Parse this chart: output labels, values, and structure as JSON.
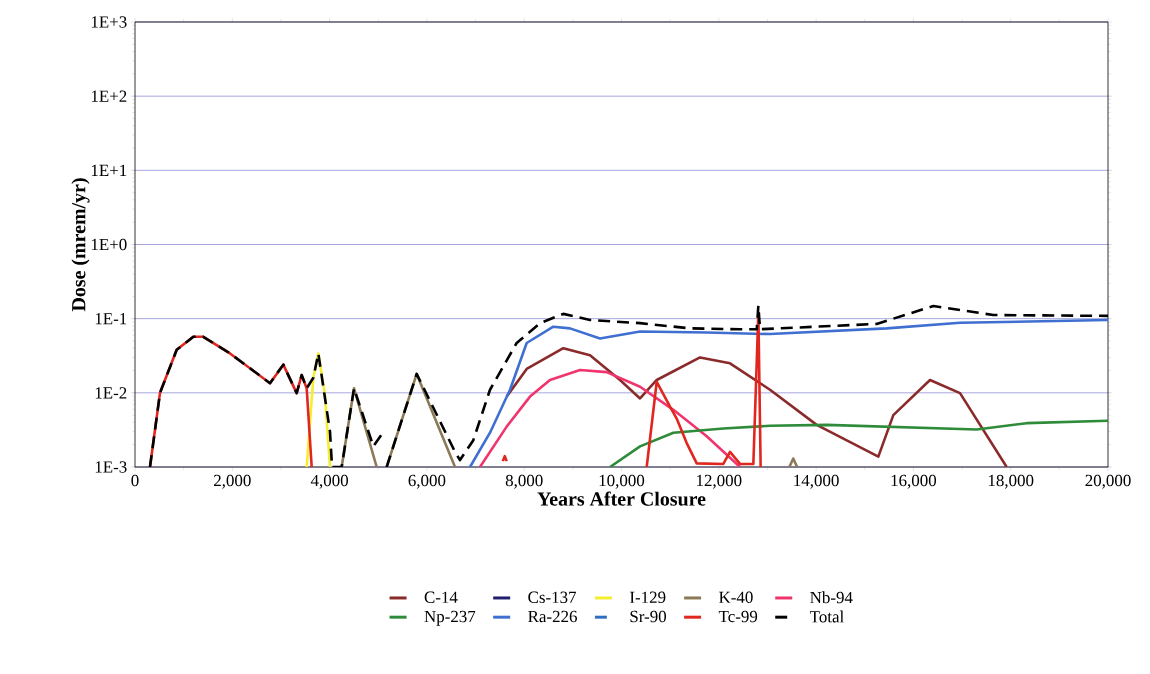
{
  "chart_data": {
    "type": "line",
    "xlabel": "Years After Closure",
    "ylabel": "Dose (mrem/yr)",
    "log": "y",
    "grid": "y",
    "legend": "bottom",
    "marker": "none",
    "xlim": [
      0,
      20000
    ],
    "ylim": [
      0.001,
      1000
    ],
    "xticks": [
      0,
      {
        "value": 2000,
        "label": "2,000"
      },
      {
        "value": 4000,
        "label": "4,000"
      },
      {
        "value": 6000,
        "label": "6,000"
      },
      {
        "value": 8000,
        "label": "8,000"
      },
      {
        "value": 10000,
        "label": "10,000"
      },
      {
        "value": 12000,
        "label": "12,000"
      },
      {
        "value": 14000,
        "label": "14,000"
      },
      {
        "value": 16000,
        "label": "16,000"
      },
      {
        "value": 18000,
        "label": "18,000"
      },
      {
        "value": 20000,
        "label": "20,000"
      }
    ],
    "yticks": [
      {
        "value": 0.001,
        "label": "1E-3"
      },
      {
        "value": 0.01,
        "label": "1E-2"
      },
      {
        "value": 0.1,
        "label": "1E-1"
      },
      {
        "value": 1,
        "label": "1E+0"
      },
      {
        "value": 10,
        "label": "1E+1"
      },
      {
        "value": 100,
        "label": "1E+2"
      },
      {
        "value": 1000,
        "label": "1E+3"
      }
    ],
    "series": [
      {
        "name": "C-14",
        "color": "#8b2a2a",
        "x": [
          7640,
          8051,
          8804,
          9353,
          9969,
          10381,
          10724,
          11614,
          12230,
          13052,
          14012,
          15279,
          15587,
          16341,
          16958,
          17917
        ],
        "values": [
          0.0089,
          0.021,
          0.04,
          0.032,
          0.0149,
          0.0084,
          0.0149,
          0.03,
          0.025,
          0.011,
          0.0037,
          0.00138,
          0.005,
          0.0149,
          0.0099,
          0.001
        ]
      },
      {
        "name": "Cs-137",
        "color": "#1f1f6e"
      },
      {
        "name": "I-129",
        "color": "#f5ee30",
        "x": [
          3529,
          3666,
          3768,
          3900,
          4008
        ],
        "values": [
          0.001,
          0.016,
          0.034,
          0.01,
          0.001
        ]
      },
      {
        "name": "K-40",
        "color": "#8c7a56",
        "x": [
          4248,
          4502,
          4968,
          5000,
          5173,
          5790,
          6578,
          6600,
          13450,
          13530,
          13610
        ],
        "values": [
          0.001,
          0.0115,
          0.001,
          null,
          0.001,
          0.018,
          0.001,
          null,
          0.001,
          0.0013,
          0.001
        ]
      },
      {
        "name": "Nb-94",
        "color": "#f0356e",
        "x": [
          7091,
          7640,
          8119,
          8530,
          9147,
          9695,
          10381,
          11066,
          11751,
          12436
        ],
        "values": [
          0.001,
          0.0035,
          0.0089,
          0.0149,
          0.0203,
          0.019,
          0.0121,
          0.0059,
          0.0026,
          0.001
        ]
      },
      {
        "name": "Np-237",
        "color": "#2e8b3a",
        "x": [
          9764,
          10381,
          11066,
          12094,
          13052,
          14217,
          17300,
          18328,
          20000
        ],
        "values": [
          0.001,
          0.0019,
          0.0029,
          0.0033,
          0.0036,
          0.0037,
          0.0032,
          0.0039,
          0.0042
        ]
      },
      {
        "name": "Ra-226",
        "color": "#3f6fd0",
        "x": [
          6886,
          7297,
          7708,
          8051,
          8599,
          8941,
          9558,
          10381,
          11751,
          13052,
          15450,
          16958,
          20000
        ],
        "values": [
          0.001,
          0.0029,
          0.011,
          0.047,
          0.078,
          0.074,
          0.054,
          0.067,
          0.065,
          0.062,
          0.074,
          0.088,
          0.096
        ]
      },
      {
        "name": "Sr-90",
        "color": "#2f6fc0",
        "line_style": "dashed"
      },
      {
        "name": "Tc-99",
        "color": "#e0261e",
        "x": [
          308,
          514,
          857,
          1199,
          1404,
          1953,
          2775,
          3049,
          3323,
          3426,
          3529,
          3632,
          3700,
          7560,
          7600,
          7640,
          7700,
          10518,
          10724,
          10997,
          11134,
          11340,
          11546,
          12093,
          12230,
          12436,
          12710,
          12813,
          12860
        ],
        "values": [
          0.001,
          0.01,
          0.038,
          0.057,
          0.057,
          0.034,
          0.0135,
          0.024,
          0.0099,
          0.0174,
          0.0115,
          0.001,
          null,
          0.0012,
          0.0014,
          0.0012,
          null,
          0.001,
          0.0141,
          0.0065,
          0.0045,
          0.0021,
          0.00112,
          0.0011,
          0.0016,
          0.0011,
          0.0011,
          0.12,
          0.001
        ]
      },
      {
        "name": "Total",
        "color": "#000000",
        "line_style": "dashed",
        "x": [
          308,
          514,
          857,
          1199,
          1404,
          1953,
          2775,
          3049,
          3323,
          3426,
          3529,
          3666,
          3768,
          4008,
          4050,
          4248,
          4502,
          4899,
          5139,
          5150,
          5173,
          5790,
          6578,
          6680,
          6954,
          7297,
          7845,
          8325,
          8804,
          9353,
          10381,
          11408,
          12436,
          12780,
          12813,
          12847,
          15245,
          16410,
          17643,
          20000
        ],
        "values": [
          0.001,
          0.01,
          0.038,
          0.057,
          0.057,
          0.034,
          0.0135,
          0.024,
          0.0099,
          0.0174,
          0.0115,
          0.016,
          0.034,
          0.003,
          0.001,
          0.001,
          0.0115,
          0.0019,
          0.0032,
          null,
          0.001,
          0.018,
          0.0016,
          0.00124,
          0.0023,
          0.011,
          0.047,
          0.087,
          0.116,
          0.096,
          0.087,
          0.074,
          0.072,
          0.072,
          0.15,
          0.072,
          0.085,
          0.148,
          0.112,
          0.109
        ]
      }
    ]
  }
}
